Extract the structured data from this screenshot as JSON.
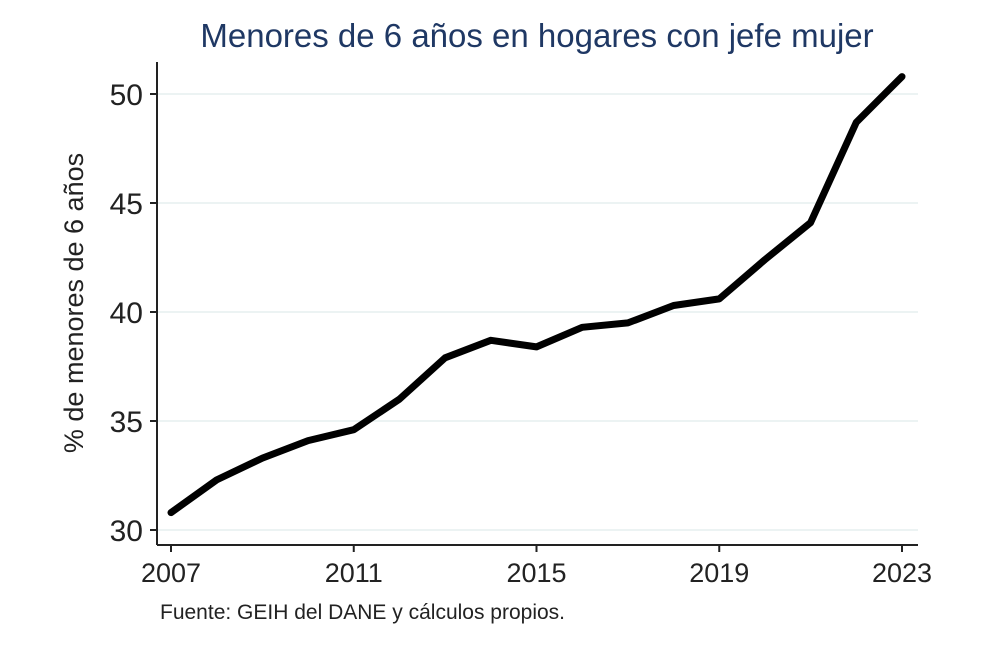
{
  "chart_data": {
    "type": "line",
    "title": "Menores de 6 años en hogares con jefe mujer",
    "xlabel": "",
    "ylabel": "% de menores de 6 años",
    "note": "Fuente: GEIH del DANE y cálculos propios.",
    "xlim": [
      2007,
      2023
    ],
    "ylim": [
      30,
      51.5
    ],
    "x_ticks": [
      2007,
      2011,
      2015,
      2019,
      2023
    ],
    "y_ticks": [
      30,
      35,
      40,
      45,
      50
    ],
    "grid": true,
    "line_color": "#000000",
    "title_color": "#1f3864",
    "grid_color": "#e6efef",
    "series": [
      {
        "x": [
          2007,
          2008,
          2009,
          2010,
          2011,
          2012,
          2013,
          2014,
          2015,
          2016,
          2017,
          2018,
          2019,
          2020,
          2021,
          2022,
          2023
        ],
        "y": [
          30.8,
          32.3,
          33.3,
          34.1,
          34.6,
          36.0,
          37.9,
          38.7,
          38.4,
          39.3,
          39.5,
          40.3,
          40.6,
          42.4,
          44.1,
          48.7,
          50.8
        ]
      }
    ]
  }
}
